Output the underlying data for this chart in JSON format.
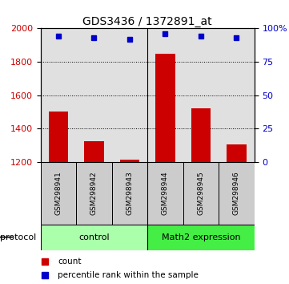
{
  "title": "GDS3436 / 1372891_at",
  "samples": [
    "GSM298941",
    "GSM298942",
    "GSM298943",
    "GSM298944",
    "GSM298945",
    "GSM298946"
  ],
  "counts": [
    1500,
    1325,
    1215,
    1850,
    1520,
    1305
  ],
  "percentile_ranks": [
    94,
    93,
    92,
    96,
    94,
    93
  ],
  "ylim_left": [
    1200,
    2000
  ],
  "ylim_right": [
    0,
    100
  ],
  "yticks_left": [
    1200,
    1400,
    1600,
    1800,
    2000
  ],
  "yticks_right": [
    0,
    25,
    50,
    75,
    100
  ],
  "bar_color": "#cc0000",
  "dot_color": "#0000cc",
  "bar_bottom": 1200,
  "protocol_groups": [
    {
      "label": "control",
      "samples": [
        0,
        1,
        2
      ],
      "color": "#aaffaa"
    },
    {
      "label": "Math2 expression",
      "samples": [
        3,
        4,
        5
      ],
      "color": "#44ee44"
    }
  ],
  "legend_items": [
    {
      "label": "count",
      "color": "#cc0000"
    },
    {
      "label": "percentile rank within the sample",
      "color": "#0000cc"
    }
  ],
  "protocol_label": "protocol",
  "title_fontsize": 10
}
